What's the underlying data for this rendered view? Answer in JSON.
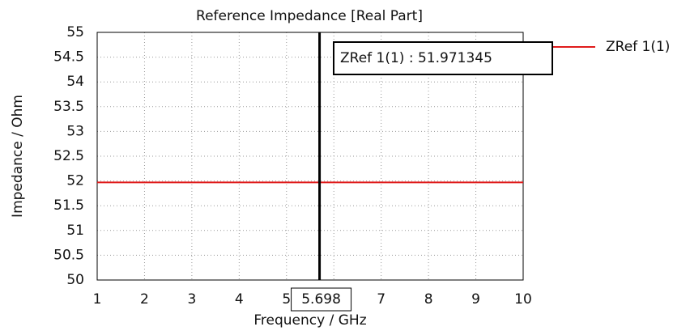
{
  "chart_data": {
    "type": "line",
    "title": "Reference Impedance [Real Part]",
    "x_label": "Frequency / GHz",
    "y_label": "Impedance / Ohm",
    "x": [
      1,
      10
    ],
    "series": [
      {
        "name": "ZRef 1(1)",
        "color": "#e01b1b",
        "values": [
          51.971345,
          51.971345
        ]
      }
    ],
    "xlim": [
      1,
      10
    ],
    "xticks": [
      1,
      2,
      3,
      4,
      5,
      6,
      7,
      8,
      9,
      10
    ],
    "ylim": [
      50,
      55
    ],
    "yticks": [
      50,
      50.5,
      51,
      51.5,
      52,
      52.5,
      53,
      53.5,
      54,
      54.5,
      55
    ],
    "grid": true,
    "legend": "right",
    "marker": {
      "x": 5.698,
      "label": "ZRef 1(1) : 51.971345"
    }
  }
}
